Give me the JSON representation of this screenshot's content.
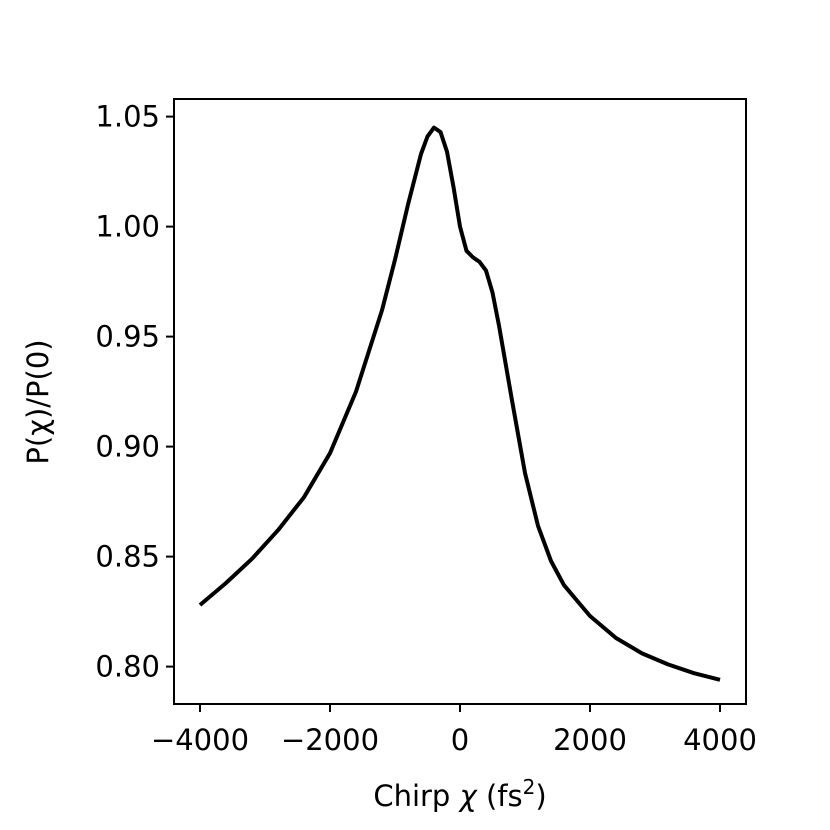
{
  "chart_data": {
    "type": "line",
    "xlabel_main": "Chirp ",
    "xlabel_symbol": "χ",
    "xlabel_unit_open": " (fs",
    "xlabel_unit_sup": "2",
    "xlabel_unit_close": ")",
    "ylabel": "P(χ)/P(0)",
    "xlim": [
      -4400,
      4400
    ],
    "ylim": [
      0.783,
      1.058
    ],
    "xticks": [
      -4000,
      -2000,
      0,
      2000,
      4000
    ],
    "xtick_labels": [
      "−4000",
      "−2000",
      "0",
      "2000",
      "4000"
    ],
    "yticks": [
      0.8,
      0.85,
      0.9,
      0.95,
      1.0,
      1.05
    ],
    "ytick_labels": [
      "0.80",
      "0.85",
      "0.90",
      "0.95",
      "1.00",
      "1.05"
    ],
    "grid": false,
    "line_color": "#000000",
    "series": [
      {
        "x": [
          -4000,
          -3600,
          -3200,
          -2800,
          -2400,
          -2000,
          -1600,
          -1200,
          -1000,
          -800,
          -600,
          -500,
          -400,
          -300,
          -200,
          -100,
          0,
          100,
          200,
          300,
          400,
          500,
          600,
          800,
          1000,
          1200,
          1400,
          1600,
          2000,
          2400,
          2800,
          3200,
          3600,
          4000
        ],
        "y": [
          0.828,
          0.838,
          0.849,
          0.862,
          0.877,
          0.897,
          0.925,
          0.962,
          0.985,
          1.01,
          1.033,
          1.041,
          1.045,
          1.043,
          1.034,
          1.018,
          1.0,
          0.989,
          0.986,
          0.984,
          0.98,
          0.97,
          0.955,
          0.921,
          0.888,
          0.864,
          0.848,
          0.837,
          0.823,
          0.813,
          0.806,
          0.801,
          0.797,
          0.794
        ]
      }
    ]
  }
}
